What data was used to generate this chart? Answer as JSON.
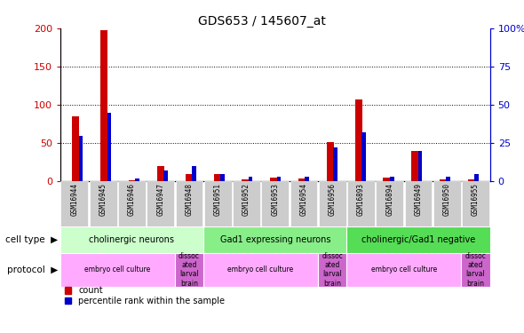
{
  "title": "GDS653 / 145607_at",
  "samples": [
    "GSM16944",
    "GSM16945",
    "GSM16946",
    "GSM16947",
    "GSM16948",
    "GSM16951",
    "GSM16952",
    "GSM16953",
    "GSM16954",
    "GSM16956",
    "GSM16893",
    "GSM16894",
    "GSM16949",
    "GSM16950",
    "GSM16955"
  ],
  "count": [
    85,
    198,
    2,
    20,
    10,
    10,
    3,
    5,
    4,
    52,
    107,
    5,
    40,
    3,
    3
  ],
  "percentile": [
    30,
    45,
    2,
    7,
    10,
    5,
    3,
    3,
    3,
    22,
    32,
    3,
    20,
    3,
    5
  ],
  "left_ylim": [
    0,
    200
  ],
  "right_ylim": [
    0,
    100
  ],
  "left_yticks": [
    0,
    50,
    100,
    150,
    200
  ],
  "right_yticks": [
    0,
    25,
    50,
    75,
    100
  ],
  "right_yticklabels": [
    "0",
    "25",
    "50",
    "75",
    "100%"
  ],
  "count_color": "#cc0000",
  "percentile_color": "#0000cc",
  "grid_color": "#000000",
  "bg_color": "#ffffff",
  "tick_area_color": "#bbbbbb",
  "cell_type_groups": [
    {
      "label": "cholinergic neurons",
      "start": 0,
      "end": 5,
      "color": "#ccffcc"
    },
    {
      "label": "Gad1 expressing neurons",
      "start": 5,
      "end": 10,
      "color": "#88ee88"
    },
    {
      "label": "cholinergic/Gad1 negative",
      "start": 10,
      "end": 15,
      "color": "#55dd55"
    }
  ],
  "protocol_groups": [
    {
      "label": "embryo cell culture",
      "start": 0,
      "end": 4,
      "color": "#ffaaff"
    },
    {
      "label": "dissoc\nated\nlarval\nbrain",
      "start": 4,
      "end": 5,
      "color": "#dd77dd"
    },
    {
      "label": "embryo cell culture",
      "start": 5,
      "end": 9,
      "color": "#ffaaff"
    },
    {
      "label": "dissoc\nated\nlarval\nbrain",
      "start": 9,
      "end": 10,
      "color": "#dd77dd"
    },
    {
      "label": "embryo cell culture",
      "start": 10,
      "end": 14,
      "color": "#ffaaff"
    },
    {
      "label": "dissoc\nated\nlarval\nbrain",
      "start": 14,
      "end": 15,
      "color": "#dd77dd"
    }
  ],
  "legend_count_label": "count",
  "legend_pct_label": "percentile rank within the sample",
  "red_bar_width": 0.25,
  "blue_bar_width": 0.15
}
